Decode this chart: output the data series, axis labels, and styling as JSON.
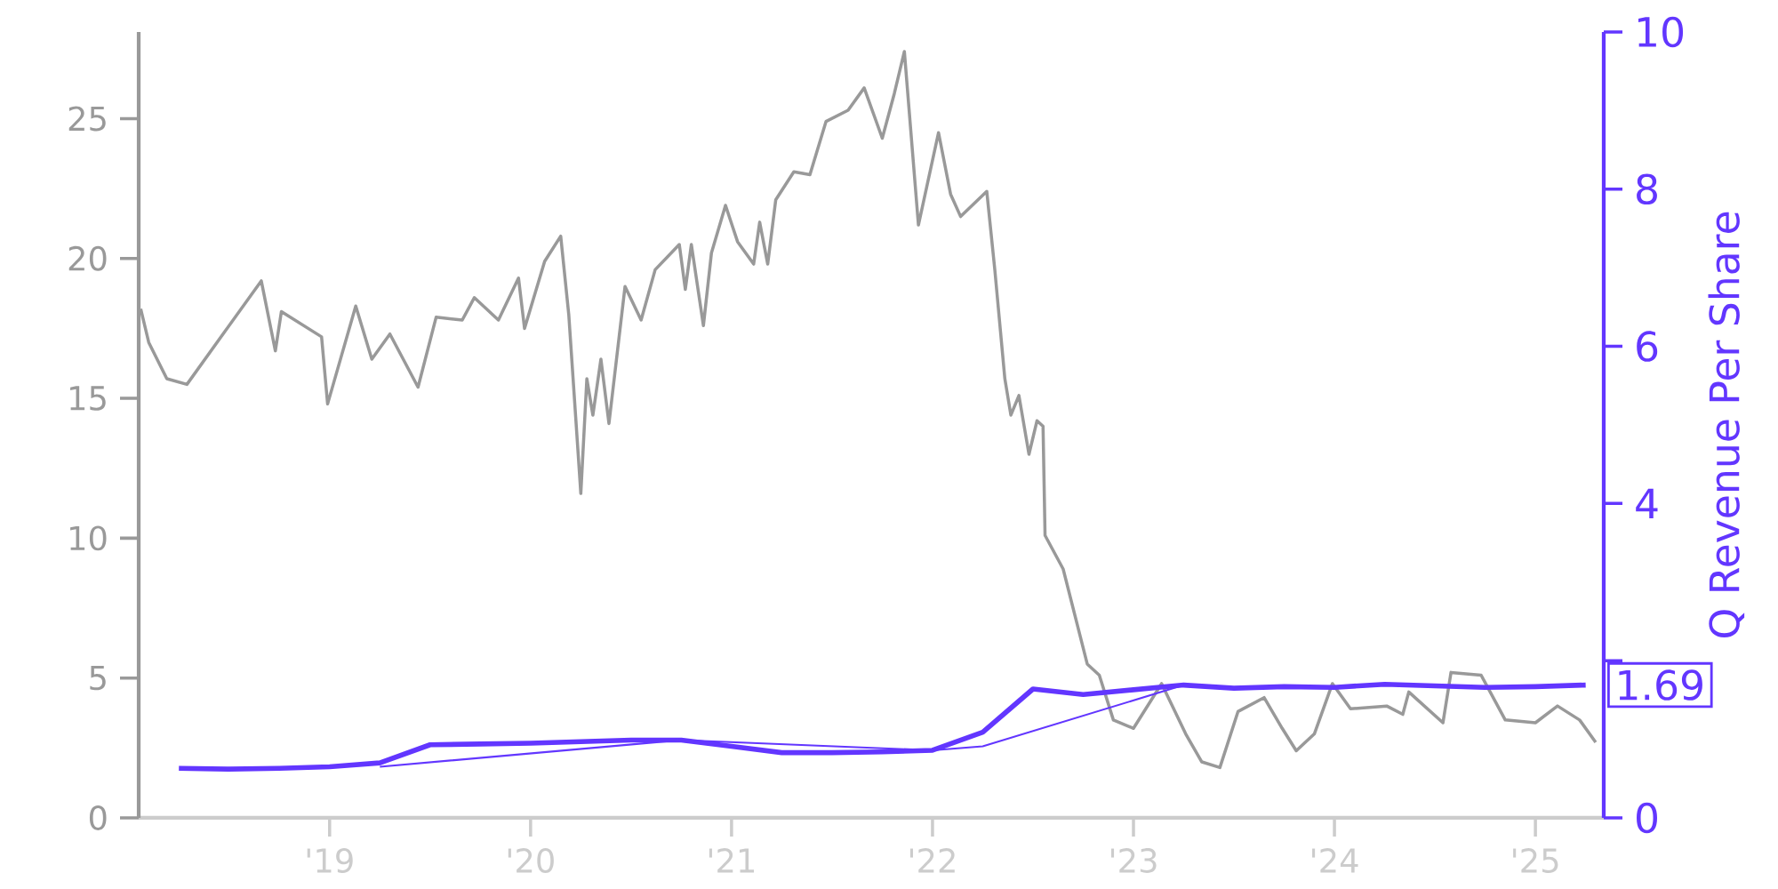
{
  "chart_data": {
    "type": "line",
    "xlim": [
      2018.05,
      2025.34
    ],
    "xticks": [
      {
        "value": 2019,
        "label": "'19"
      },
      {
        "value": 2020,
        "label": "'20"
      },
      {
        "value": 2021,
        "label": "'21"
      },
      {
        "value": 2022,
        "label": "'22"
      },
      {
        "value": 2023,
        "label": "'23"
      },
      {
        "value": 2024,
        "label": "'24"
      },
      {
        "value": 2025,
        "label": "'25"
      }
    ],
    "ylim": [
      0,
      28.1
    ],
    "yticks": [
      0,
      5,
      10,
      15,
      20,
      25
    ],
    "y2lim": [
      0,
      10
    ],
    "y2ticks": [
      0,
      {
        "value": 2,
        "label": null
      },
      4,
      6,
      8,
      10
    ],
    "y2label": "Q Revenue Per Share",
    "series": [
      {
        "color": "#999999",
        "x": [
          2018.06,
          2018.1,
          2018.19,
          2018.29,
          2018.48,
          2018.66,
          2018.73,
          2018.76,
          2018.96,
          2018.99,
          2019.13,
          2019.21,
          2019.3,
          2019.44,
          2019.53,
          2019.66,
          2019.72,
          2019.84,
          2019.94,
          2019.97,
          2020.07,
          2020.15,
          2020.19,
          2020.25,
          2020.28,
          2020.31,
          2020.35,
          2020.39,
          2020.47,
          2020.55,
          2020.62,
          2020.74,
          2020.77,
          2020.8,
          2020.86,
          2020.9,
          2020.97,
          2021.03,
          2021.11,
          2021.14,
          2021.18,
          2021.22,
          2021.31,
          2021.39,
          2021.47,
          2021.58,
          2021.66,
          2021.75,
          2021.81,
          2021.86,
          2021.93,
          2022.03,
          2022.09,
          2022.14,
          2022.27,
          2022.31,
          2022.36,
          2022.39,
          2022.43,
          2022.48,
          2022.52,
          2022.55,
          2022.56,
          2022.65,
          2022.71,
          2022.77,
          2022.83,
          2022.9,
          2023.0,
          2023.14,
          2023.26,
          2023.34,
          2023.43,
          2023.52,
          2023.65,
          2023.74,
          2023.81,
          2023.9,
          2023.99,
          2024.08,
          2024.26,
          2024.34,
          2024.37,
          2024.54,
          2024.58,
          2024.73,
          2024.85,
          2025.0,
          2025.11,
          2025.22,
          2025.3
        ],
        "values": [
          18.2,
          17.0,
          15.7,
          15.5,
          17.4,
          19.2,
          16.7,
          18.1,
          17.2,
          14.8,
          18.3,
          16.4,
          17.3,
          15.4,
          17.9,
          17.8,
          18.6,
          17.8,
          19.3,
          17.5,
          19.9,
          20.8,
          18.0,
          11.6,
          15.7,
          14.4,
          16.4,
          14.1,
          19.0,
          17.8,
          19.6,
          20.5,
          18.9,
          20.5,
          17.6,
          20.2,
          21.9,
          20.6,
          19.8,
          21.3,
          19.8,
          22.1,
          23.1,
          23.0,
          24.9,
          25.3,
          26.1,
          24.3,
          25.9,
          27.4,
          21.2,
          24.5,
          22.3,
          21.5,
          22.4,
          19.6,
          15.7,
          14.4,
          15.1,
          13.0,
          14.2,
          14.0,
          10.1,
          8.9,
          7.2,
          5.5,
          5.1,
          3.5,
          3.2,
          4.8,
          3.0,
          2.0,
          1.8,
          3.8,
          4.3,
          3.2,
          2.4,
          3.0,
          4.8,
          3.9,
          4.0,
          3.7,
          4.5,
          3.4,
          5.2,
          5.1,
          3.5,
          3.4,
          4.0,
          3.5,
          2.7
        ]
      },
      {
        "color": "#6236ff",
        "axis": "y2",
        "x": [
          2018.25,
          2018.5,
          2018.75,
          2019.0,
          2019.25,
          2019.5,
          2019.75,
          2020.0,
          2020.25,
          2020.5,
          2020.75,
          2021.0,
          2021.25,
          2021.5,
          2021.75,
          2022.0,
          2022.25,
          2022.5,
          2022.75,
          2023.0,
          2023.25,
          2023.5,
          2023.75,
          2024.0,
          2024.25,
          2024.5,
          2024.75,
          2025.0,
          2025.25
        ],
        "values": [
          0.63,
          0.62,
          0.63,
          0.65,
          0.7,
          0.93,
          0.94,
          0.95,
          0.97,
          0.99,
          0.99,
          0.91,
          0.83,
          0.83,
          0.84,
          0.86,
          1.09,
          1.64,
          1.57,
          1.63,
          1.69,
          1.65,
          1.67,
          1.66,
          1.7,
          1.68,
          1.66,
          1.67,
          1.69
        ],
        "value_labels": [
          null,
          null,
          null,
          null,
          null,
          null,
          null,
          null,
          null,
          null,
          null,
          null,
          null,
          null,
          null,
          null,
          null,
          null,
          null,
          null,
          null,
          null,
          null,
          null,
          null,
          null,
          null,
          null,
          "1.69"
        ]
      },
      {
        "color": "#6236ff",
        "axis": "y2",
        "x": [
          2019.25,
          2020.75,
          2022.0,
          2022.25,
          2023.25
        ],
        "values": [
          0.65,
          0.99,
          0.86,
          0.91,
          1.69
        ]
      }
    ]
  }
}
